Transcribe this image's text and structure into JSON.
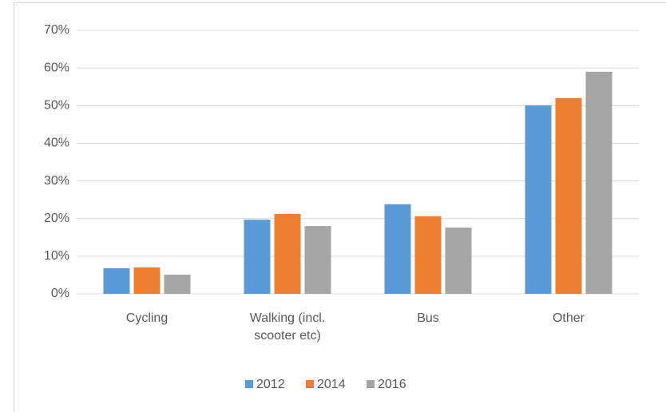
{
  "chart_data": {
    "type": "bar",
    "categories": [
      "Cycling",
      "Walking (incl. scooter etc)",
      "Bus",
      "Other"
    ],
    "series": [
      {
        "name": "2012",
        "color": "#5b9bd5",
        "values": [
          6.8,
          19.7,
          23.8,
          50.1
        ]
      },
      {
        "name": "2014",
        "color": "#ed7d31",
        "values": [
          7.0,
          21.2,
          20.6,
          52.0
        ]
      },
      {
        "name": "2016",
        "color": "#a5a5a5",
        "values": [
          5.1,
          18.0,
          17.6,
          59.0
        ]
      }
    ],
    "ylim": [
      0,
      70
    ],
    "yticks": [
      {
        "value": 0,
        "label": "0%"
      },
      {
        "value": 10,
        "label": "10%"
      },
      {
        "value": 20,
        "label": "20%"
      },
      {
        "value": 30,
        "label": "30%"
      },
      {
        "value": 40,
        "label": "40%"
      },
      {
        "value": 50,
        "label": "50%"
      },
      {
        "value": 60,
        "label": "60%"
      },
      {
        "value": 70,
        "label": "70%"
      }
    ],
    "grid": true,
    "legend": "bottom"
  }
}
